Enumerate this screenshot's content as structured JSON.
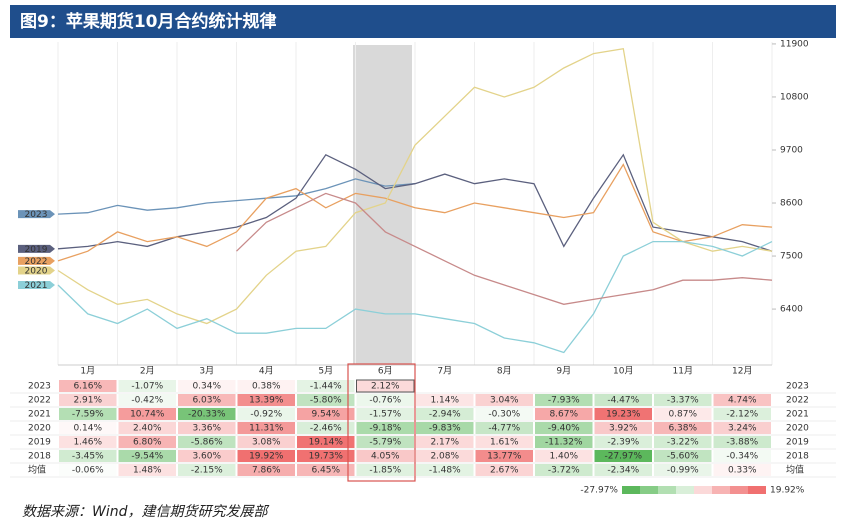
{
  "title": "图9：苹果期货10月合约统计规律",
  "chart_data": {
    "type": "line",
    "categories": [
      "1月",
      "2月",
      "3月",
      "4月",
      "5月",
      "6月",
      "7月",
      "8月",
      "9月",
      "10月",
      "11月",
      "12月"
    ],
    "x": [
      0.5,
      1,
      1.5,
      2,
      2.5,
      3,
      3.5,
      4,
      4.5,
      5,
      5.5,
      6,
      6.5,
      7,
      7.5,
      8,
      8.5,
      9,
      9.5,
      10,
      10.5,
      11,
      11.5,
      12,
      12.5
    ],
    "xlim": [
      0.5,
      12.5
    ],
    "ylim": [
      5240,
      11940
    ],
    "yticks": [
      6400,
      7500,
      8600,
      9700,
      10800,
      11900
    ],
    "series": [
      {
        "name": "2023",
        "color": "#6b93b8",
        "values": [
          8370,
          8400,
          8550,
          8450,
          8500,
          8600,
          8650,
          8700,
          8750,
          8900,
          9100,
          8950,
          9000,
          null,
          null,
          null,
          null,
          null,
          null,
          null,
          null,
          null,
          null,
          null,
          null
        ]
      },
      {
        "name": "2019",
        "color": "#5b607e",
        "values": [
          7650,
          7700,
          7800,
          7700,
          7900,
          8000,
          8100,
          8300,
          8700,
          9600,
          9300,
          8900,
          9000,
          9200,
          9000,
          9100,
          9000,
          7700,
          8700,
          9600,
          8100,
          8000,
          7900,
          7800,
          7600
        ]
      },
      {
        "name": "2022",
        "color": "#e8a060",
        "values": [
          7400,
          7600,
          8000,
          7800,
          7900,
          7700,
          8000,
          8700,
          8900,
          8500,
          8800,
          8700,
          8500,
          8400,
          8600,
          8500,
          8400,
          8300,
          8400,
          9400,
          8000,
          7800,
          7900,
          8150,
          8100
        ]
      },
      {
        "name": "2020",
        "color": "#e3d38a",
        "values": [
          7200,
          6800,
          6500,
          6600,
          6300,
          6100,
          6400,
          7100,
          7600,
          7700,
          8400,
          8600,
          9800,
          10400,
          11000,
          10800,
          11000,
          11400,
          11700,
          11800,
          8200,
          7800,
          7600,
          7700,
          7600
        ]
      },
      {
        "name": "2021",
        "color": "#8ccfd8",
        "values": [
          6900,
          6300,
          6100,
          6400,
          6000,
          6200,
          5900,
          5900,
          6000,
          6000,
          6400,
          6300,
          6300,
          6200,
          6100,
          5800,
          5700,
          5500,
          6300,
          7500,
          7800,
          7800,
          7700,
          7500,
          7800
        ]
      },
      {
        "name": "2018",
        "color": "#c78a8a",
        "values": [
          null,
          null,
          null,
          null,
          null,
          null,
          7600,
          8200,
          8500,
          8800,
          8600,
          8000,
          7700,
          7400,
          7100,
          6900,
          6700,
          6500,
          6600,
          6700,
          6800,
          7000,
          7000,
          7050,
          7000
        ]
      }
    ]
  },
  "table": {
    "rows": [
      {
        "label": "2023",
        "cells": [
          "6.16%",
          "-1.07%",
          "0.34%",
          "0.38%",
          "-1.44%",
          "2.12%",
          null,
          null,
          null,
          null,
          null,
          null
        ]
      },
      {
        "label": "2022",
        "cells": [
          "2.91%",
          "-0.42%",
          "6.03%",
          "13.39%",
          "-5.80%",
          "-0.76%",
          "1.14%",
          "3.04%",
          "-7.93%",
          "-4.47%",
          "-3.37%",
          "4.74%"
        ]
      },
      {
        "label": "2021",
        "cells": [
          "-7.59%",
          "10.74%",
          "-20.33%",
          "-0.92%",
          "9.54%",
          "-1.57%",
          "-2.94%",
          "-0.30%",
          "8.67%",
          "19.23%",
          "0.87%",
          "-2.12%"
        ]
      },
      {
        "label": "2020",
        "cells": [
          "0.14%",
          "2.40%",
          "3.36%",
          "11.31%",
          "-2.46%",
          "-9.18%",
          "-9.83%",
          "-4.77%",
          "-9.40%",
          "3.92%",
          "6.38%",
          "3.24%"
        ]
      },
      {
        "label": "2019",
        "cells": [
          "1.46%",
          "6.80%",
          "-5.86%",
          "3.08%",
          "19.14%",
          "-5.79%",
          "2.17%",
          "1.61%",
          "-11.32%",
          "-2.39%",
          "-3.22%",
          "-3.88%"
        ]
      },
      {
        "label": "2018",
        "cells": [
          "-3.45%",
          "-9.54%",
          "3.60%",
          "19.92%",
          "19.73%",
          "4.05%",
          "2.08%",
          "13.77%",
          "1.40%",
          "-27.97%",
          "-5.60%",
          "-0.34%"
        ]
      },
      {
        "label": "均值",
        "cells": [
          "-0.06%",
          "1.48%",
          "-2.15%",
          "7.86%",
          "6.45%",
          "-1.85%",
          "-1.48%",
          "2.67%",
          "-3.72%",
          "-2.34%",
          "-0.99%",
          "0.33%"
        ]
      }
    ]
  },
  "legend": {
    "min": "-27.97%",
    "max": "19.92%"
  },
  "source": "数据来源：Wind，建信期货研究发展部"
}
